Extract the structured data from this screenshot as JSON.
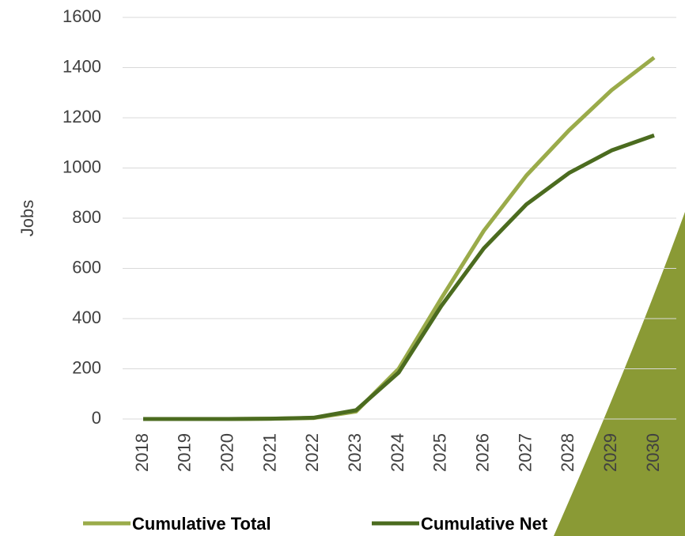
{
  "chart_data": {
    "type": "line",
    "y_label": "Jobs",
    "categories": [
      "2018",
      "2019",
      "2020",
      "2021",
      "2022",
      "2023",
      "2024",
      "2025",
      "2026",
      "2027",
      "2028",
      "2029",
      "2030"
    ],
    "series": [
      {
        "name": "Cumulative Total",
        "color": "#9aab4a",
        "values": [
          0,
          0,
          0,
          1,
          4,
          30,
          200,
          480,
          750,
          970,
          1150,
          1310,
          1440
        ]
      },
      {
        "name": "Cumulative Net",
        "color": "#4b6b1f",
        "values": [
          0,
          0,
          0,
          1,
          5,
          35,
          185,
          450,
          680,
          855,
          980,
          1070,
          1130
        ]
      }
    ],
    "ylim": [
      0,
      1600
    ],
    "yticks": [
      0,
      200,
      400,
      600,
      800,
      1000,
      1200,
      1400,
      1600
    ],
    "grid": true
  }
}
